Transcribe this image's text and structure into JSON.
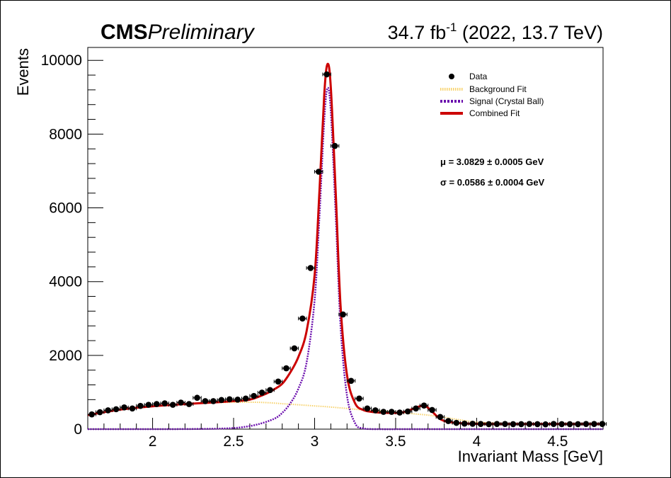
{
  "header": {
    "experiment": "CMS",
    "status": "Preliminary",
    "lumi_value": "34.7 fb",
    "lumi_exp": "-1",
    "lumi_run": " (2022, 13.7 TeV)"
  },
  "annotations": {
    "mu": "μ = 3.0829 ± 0.0005 GeV",
    "sigma": "σ = 0.0586 ± 0.0004 GeV"
  },
  "chart_data": {
    "type": "scatter",
    "xlabel": "Invariant Mass [GeV]",
    "ylabel": "Events",
    "xlim": [
      1.6,
      4.78
    ],
    "ylim": [
      0,
      10350
    ],
    "x_ticks": [
      2,
      2.5,
      3,
      3.5,
      4,
      4.5
    ],
    "x_tick_labels": [
      "2",
      "2.5",
      "3",
      "3.5",
      "4",
      "4.5"
    ],
    "y_ticks": [
      0,
      2000,
      4000,
      6000,
      8000,
      10000
    ],
    "y_tick_labels": [
      "0",
      "2000",
      "4000",
      "6000",
      "8000",
      "10000"
    ],
    "legend_position": "top-right",
    "series": [
      {
        "name": "Data",
        "kind": "points",
        "color": "#000000",
        "x_err": 0.025,
        "x": [
          1.625,
          1.675,
          1.725,
          1.775,
          1.825,
          1.875,
          1.925,
          1.975,
          2.025,
          2.075,
          2.125,
          2.175,
          2.225,
          2.275,
          2.325,
          2.375,
          2.425,
          2.475,
          2.525,
          2.575,
          2.625,
          2.675,
          2.725,
          2.775,
          2.825,
          2.875,
          2.925,
          2.975,
          3.025,
          3.075,
          3.125,
          3.175,
          3.225,
          3.275,
          3.325,
          3.375,
          3.425,
          3.475,
          3.525,
          3.575,
          3.625,
          3.675,
          3.725,
          3.775,
          3.825,
          3.875,
          3.925,
          3.975,
          4.025,
          4.075,
          4.125,
          4.175,
          4.225,
          4.275,
          4.325,
          4.375,
          4.425,
          4.475,
          4.525,
          4.575,
          4.625,
          4.675,
          4.725,
          4.775
        ],
        "y": [
          400,
          460,
          510,
          540,
          590,
          560,
          630,
          660,
          680,
          700,
          660,
          720,
          680,
          850,
          760,
          760,
          790,
          810,
          800,
          830,
          900,
          990,
          1060,
          1290,
          1650,
          2190,
          3000,
          4370,
          6980,
          9620,
          7680,
          3110,
          1310,
          830,
          560,
          510,
          470,
          470,
          450,
          480,
          560,
          640,
          520,
          330,
          220,
          170,
          150,
          145,
          140,
          135,
          140,
          140,
          135,
          135,
          140,
          135,
          130,
          140,
          135,
          135,
          135,
          140,
          140,
          140
        ]
      },
      {
        "name": "Background Fit",
        "kind": "line",
        "color": "#f7d26b",
        "x": [
          1.6,
          1.8,
          2.0,
          2.2,
          2.4,
          2.6,
          2.7,
          2.8,
          2.9,
          3.0,
          3.1,
          3.2,
          3.3,
          3.4,
          3.5,
          3.6,
          3.7,
          3.8,
          3.9,
          4.0,
          4.2,
          4.4,
          4.6,
          4.78
        ],
        "y": [
          380,
          530,
          620,
          680,
          720,
          730,
          720,
          690,
          660,
          630,
          600,
          560,
          520,
          490,
          460,
          420,
          380,
          320,
          250,
          190,
          150,
          140,
          140,
          140
        ]
      },
      {
        "name": "Signal (Crystal Ball)",
        "kind": "line",
        "color": "#6a0dad",
        "x": [
          1.6,
          2.0,
          2.3,
          2.45,
          2.55,
          2.65,
          2.75,
          2.8,
          2.85,
          2.9,
          2.95,
          3.0,
          3.03,
          3.06,
          3.08,
          3.1,
          3.13,
          3.16,
          3.2,
          3.25,
          3.3,
          3.4,
          3.6,
          4.0,
          4.78
        ],
        "y": [
          0,
          0,
          5,
          20,
          50,
          130,
          280,
          440,
          700,
          1100,
          1800,
          3500,
          5800,
          8400,
          9250,
          8600,
          5800,
          2800,
          900,
          160,
          20,
          0,
          0,
          0,
          0
        ]
      },
      {
        "name": "Combined Fit",
        "kind": "line",
        "color": "#cc0000",
        "x": [
          1.6,
          1.8,
          2.0,
          2.2,
          2.4,
          2.5,
          2.6,
          2.7,
          2.75,
          2.8,
          2.85,
          2.9,
          2.95,
          3.0,
          3.03,
          3.06,
          3.08,
          3.1,
          3.13,
          3.16,
          3.2,
          3.25,
          3.3,
          3.35,
          3.4,
          3.5,
          3.55,
          3.6,
          3.65,
          3.68,
          3.72,
          3.78,
          3.85,
          3.95,
          4.1,
          4.4,
          4.78
        ],
        "y": [
          380,
          530,
          620,
          680,
          730,
          760,
          800,
          960,
          1080,
          1230,
          1540,
          1960,
          2650,
          4180,
          6480,
          9100,
          9900,
          9260,
          6420,
          3360,
          1460,
          700,
          520,
          470,
          450,
          440,
          460,
          540,
          620,
          640,
          500,
          260,
          180,
          150,
          140,
          140,
          140
        ]
      }
    ]
  }
}
